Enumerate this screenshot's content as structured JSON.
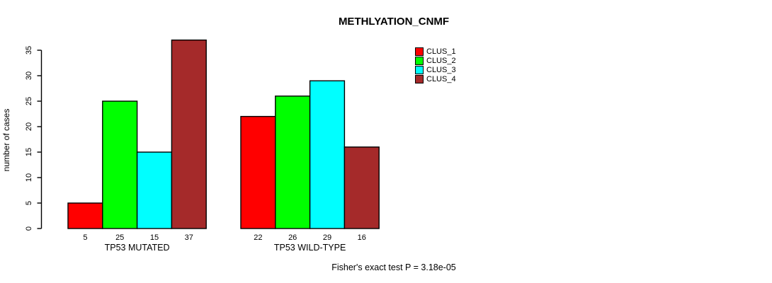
{
  "chart_data": {
    "type": "bar",
    "title": "METHLYATION_CNMF",
    "ylabel": "number of cases",
    "xlabel": "",
    "annotation": "Fisher's exact test P = 3.18e-05",
    "categories": [
      "TP53 MUTATED",
      "TP53 WILD-TYPE"
    ],
    "series": [
      {
        "name": "CLUS_1",
        "color": "#FF0000",
        "values": [
          5,
          22
        ]
      },
      {
        "name": "CLUS_2",
        "color": "#00FF00",
        "values": [
          25,
          26
        ]
      },
      {
        "name": "CLUS_3",
        "color": "#00FFFF",
        "values": [
          15,
          29
        ]
      },
      {
        "name": "CLUS_4",
        "color": "#A52A2A",
        "values": [
          37,
          16
        ]
      }
    ],
    "bar_value_labels": [
      [
        5,
        25,
        15,
        37
      ],
      [
        22,
        26,
        29,
        16
      ]
    ],
    "yticks": [
      0,
      5,
      10,
      15,
      20,
      25,
      30,
      35
    ],
    "ylim": [
      0,
      37
    ],
    "grid": false,
    "legend_position": "top-right",
    "bar_border_color": "#000000",
    "text_color": "#000000",
    "background_color": "#FFFFFF"
  }
}
